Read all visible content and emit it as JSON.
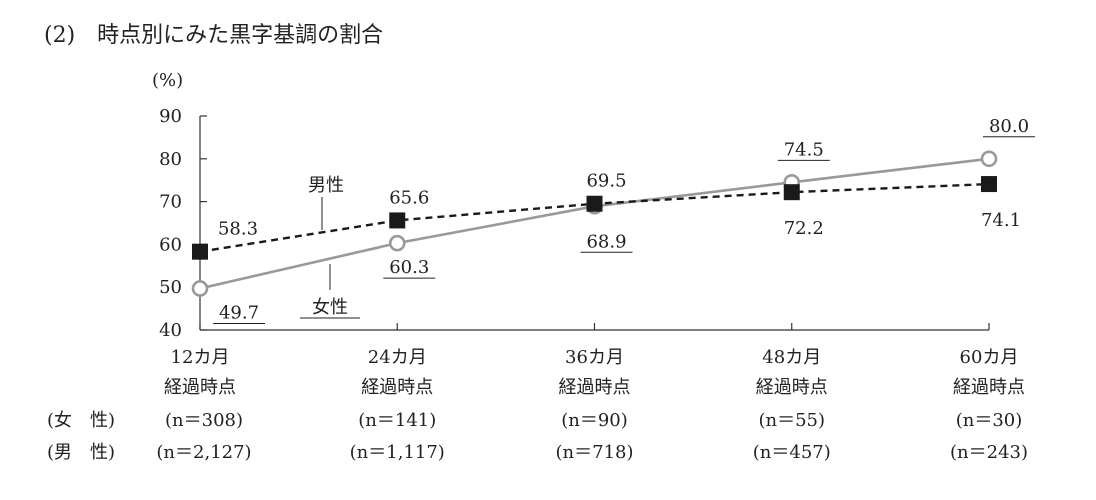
{
  "title": "(2)　時点別にみた黒字基調の割合",
  "chart_data": {
    "type": "line",
    "unit_label": "(%)",
    "ylim": [
      40,
      90
    ],
    "yticks": [
      40,
      50,
      60,
      70,
      80,
      90
    ],
    "categories": [
      "12カ月",
      "24カ月",
      "36カ月",
      "48カ月",
      "60カ月"
    ],
    "category_sub": "経過時点",
    "series": [
      {
        "name": "男性",
        "values": [
          58.3,
          65.6,
          69.5,
          72.2,
          74.1
        ],
        "style": "dashed",
        "marker": "square",
        "color": "#1a1a1a"
      },
      {
        "name": "女性",
        "values": [
          49.7,
          60.3,
          68.9,
          74.5,
          80.0
        ],
        "style": "solid",
        "marker": "circle",
        "color": "#999999"
      }
    ],
    "value_labels_male": [
      "58.3",
      "65.6",
      "69.5",
      "72.2",
      "74.1"
    ],
    "value_labels_female": [
      "49.7",
      "60.3",
      "68.9",
      "74.5",
      "80.0"
    ],
    "sample_rows": [
      {
        "label": "(女　性)",
        "values": [
          "(n＝308)",
          "(n＝141)",
          "(n＝90)",
          "(n＝55)",
          "(n＝30)"
        ]
      },
      {
        "label": "(男　性)",
        "values": [
          "(n＝2,127)",
          "(n＝1,117)",
          "(n＝718)",
          "(n＝457)",
          "(n＝243)"
        ]
      }
    ],
    "grid": false,
    "legend": "inline"
  }
}
